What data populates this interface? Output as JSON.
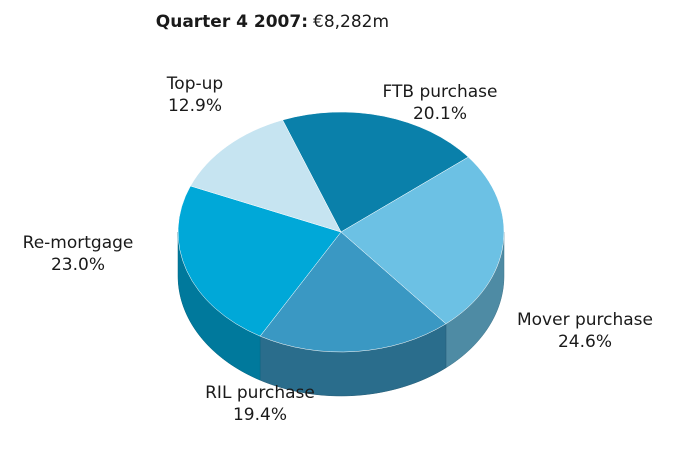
{
  "chart_data": {
    "type": "pie",
    "title": "Quarter 4 2007:",
    "title_value": "€8,282m",
    "categories": [
      "FTB purchase",
      "Mover purchase",
      "RIL purchase",
      "Re-mortgage",
      "Top-up"
    ],
    "values": [
      20.1,
      24.6,
      19.4,
      23.0,
      12.9
    ],
    "value_labels": [
      "20.1%",
      "24.6%",
      "19.4%",
      "23.0%",
      "12.9%"
    ],
    "colors": [
      "#0a80aa",
      "#6cc1e4",
      "#3a98c3",
      "#00a8d8",
      "#c6e4f1"
    ]
  }
}
